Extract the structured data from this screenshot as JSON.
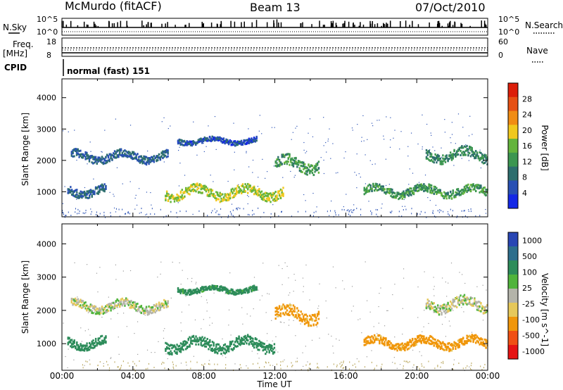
{
  "header": {
    "station": "McMurdo (fitACF)",
    "beam": "Beam 13",
    "date": "07/Oct/2010"
  },
  "top_panels": {
    "nsky_label": "N.Sky",
    "nsky_ticks": [
      "10^5",
      "10^0"
    ],
    "nsearch_label": "N.Search",
    "nsearch_ticks": [
      "10^5",
      "10^0"
    ],
    "freq_label": "Freq.",
    "freq_unit": "[MHz]",
    "freq_ticks": [
      "18",
      "8"
    ],
    "nave_label": "Nave",
    "nave_ticks": [
      "60",
      "0"
    ],
    "cpid_label": "CPID",
    "cpid_value": "normal (fast) 151"
  },
  "colors": {
    "power_scale": [
      "#1428e6",
      "#2850b4",
      "#2d6e6e",
      "#3c9650",
      "#64b43c",
      "#f0c81e",
      "#f08c14",
      "#e65014",
      "#dc1e0a"
    ],
    "velocity_scale": [
      "#2846b4",
      "#2d6e8c",
      "#2d8c5a",
      "#50b43c",
      "#b4b4aa",
      "#e6c85a",
      "#f0960a",
      "#f05014",
      "#e61414"
    ]
  },
  "chart_data": [
    {
      "type": "heatmap",
      "name": "power",
      "xlabel": "",
      "ylabel": "Slant Range [km]",
      "x_ticks": [
        "00:00",
        "04:00",
        "08:00",
        "12:00",
        "16:00",
        "20:00",
        "00:00"
      ],
      "y_ticks": [
        1000,
        2000,
        3000,
        4000
      ],
      "ylim": [
        200,
        4600
      ],
      "colorbar": {
        "label": "Power [dB]",
        "ticks": [
          4,
          8,
          12,
          16,
          20,
          24,
          28
        ]
      },
      "regions": [
        {
          "t0": 0.5,
          "t1": 6.0,
          "range": 2150,
          "width": 250,
          "value": 8
        },
        {
          "t0": 6.5,
          "t1": 11.0,
          "range": 2650,
          "width": 150,
          "value": 6
        },
        {
          "t0": 0.3,
          "t1": 2.5,
          "range": 1050,
          "width": 250,
          "value": 8
        },
        {
          "t0": 5.8,
          "t1": 12.5,
          "range": 1000,
          "width": 300,
          "value": 20
        },
        {
          "t0": 12.0,
          "t1": 14.5,
          "range": 1900,
          "width": 350,
          "value": 14
        },
        {
          "t0": 17.0,
          "t1": 24.0,
          "range": 1050,
          "width": 250,
          "value": 14
        },
        {
          "t0": 20.5,
          "t1": 24.0,
          "range": 2200,
          "width": 300,
          "value": 12
        }
      ]
    },
    {
      "type": "heatmap",
      "name": "velocity",
      "xlabel": "Time UT",
      "ylabel": "Slant Range [km]",
      "x_ticks": [
        "00:00",
        "04:00",
        "08:00",
        "12:00",
        "16:00",
        "20:00",
        "00:00"
      ],
      "y_ticks": [
        1000,
        2000,
        3000,
        4000
      ],
      "ylim": [
        200,
        4600
      ],
      "colorbar": {
        "label": "Velocity [m s^-1]",
        "ticks": [
          "1000",
          "500",
          "100",
          "25",
          "-25",
          "-100",
          "-500",
          "-1000"
        ]
      },
      "regions": [
        {
          "t0": 0.5,
          "t1": 6.0,
          "range": 2150,
          "width": 250,
          "value": 0
        },
        {
          "t0": 6.5,
          "t1": 11.0,
          "range": 2650,
          "width": 150,
          "value": 150
        },
        {
          "t0": 0.3,
          "t1": 2.5,
          "range": 1050,
          "width": 250,
          "value": 300
        },
        {
          "t0": 5.8,
          "t1": 12.0,
          "range": 1000,
          "width": 300,
          "value": 300
        },
        {
          "t0": 12.0,
          "t1": 14.5,
          "range": 1900,
          "width": 350,
          "value": -150
        },
        {
          "t0": 17.0,
          "t1": 24.0,
          "range": 1050,
          "width": 250,
          "value": -150
        },
        {
          "t0": 20.5,
          "t1": 24.0,
          "range": 2200,
          "width": 300,
          "value": 0
        }
      ]
    }
  ]
}
